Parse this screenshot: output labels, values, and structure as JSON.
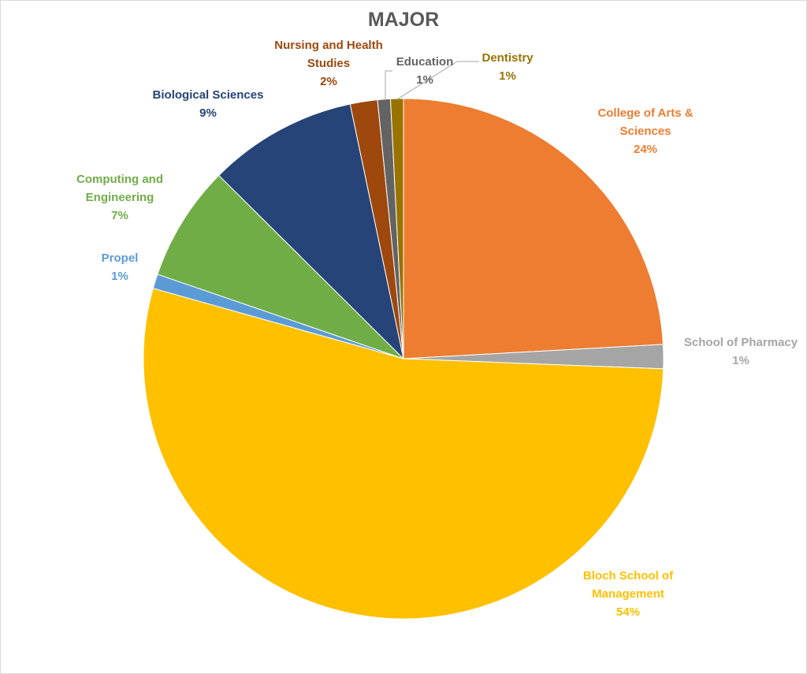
{
  "chart_data": {
    "type": "pie",
    "title": "MAJOR",
    "slices": [
      {
        "name": "College of Arts & Sciences",
        "value_label": "24%",
        "value": 24.2,
        "color": "#ed7d31"
      },
      {
        "name": "School of Pharmacy",
        "value_label": "1%",
        "value": 1.5,
        "color": "#a5a5a5"
      },
      {
        "name": "Bloch School of Management",
        "value_label": "54%",
        "value": 53.9,
        "color": "#ffc000"
      },
      {
        "name": "Propel",
        "value_label": "1%",
        "value": 0.9,
        "color": "#5b9bd5"
      },
      {
        "name": "Computing and Engineering",
        "value_label": "7%",
        "value": 7.2,
        "color": "#70ad47"
      },
      {
        "name": "Biological Sciences",
        "value_label": "9%",
        "value": 9.3,
        "color": "#264478"
      },
      {
        "name": "Nursing and Health Studies",
        "value_label": "2%",
        "value": 1.7,
        "color": "#9e480e"
      },
      {
        "name": "Education",
        "value_label": "1%",
        "value": 0.8,
        "color": "#636363"
      },
      {
        "name": "Dentistry",
        "value_label": "1%",
        "value": 0.8,
        "color": "#997300"
      }
    ],
    "label_text": [
      [
        "College of Arts &",
        "Sciences",
        "24%"
      ],
      [
        "School of Pharmacy",
        "1%"
      ],
      [
        "Bloch School of",
        "Management",
        "54%"
      ],
      [
        "Propel",
        "1%"
      ],
      [
        "Computing and",
        "Engineering",
        "7%"
      ],
      [
        "Biological Sciences",
        "9%"
      ],
      [
        "Nursing and Health",
        "Studies",
        "2%"
      ],
      [
        "Education",
        "1%"
      ],
      [
        "Dentistry",
        "1%"
      ]
    ],
    "label_colors": [
      "#ed7d31",
      "#a5a5a5",
      "#ffc000",
      "#5b9bd5",
      "#70ad47",
      "#264478",
      "#9e480e",
      "#636363",
      "#997300"
    ],
    "start_angle": "12 o'clock, clockwise",
    "legend": "none (data labels)"
  }
}
